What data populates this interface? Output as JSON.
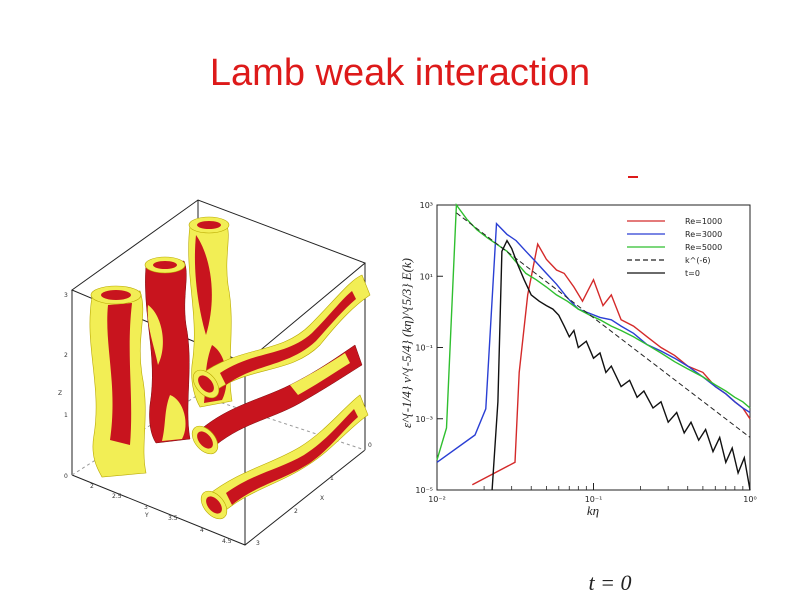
{
  "slide": {
    "title": "Lamb weak interaction",
    "caption": "t = 0"
  },
  "figure3d": {
    "axis_labels": {
      "x": "X",
      "y": "Y",
      "z": "Z"
    },
    "z_ticks": [
      "0",
      "1",
      "2",
      "3"
    ],
    "y_ticks": [
      "2",
      "2.5",
      "3",
      "3.5",
      "4",
      "4.5"
    ],
    "x_ticks": [
      "0",
      "1",
      "2",
      "3"
    ],
    "colors": {
      "inner": "#c8141e",
      "outer": "#f2ee55"
    }
  },
  "chart_data": {
    "type": "line",
    "xlabel": "kη",
    "ylabel": "ε^{-1/4} ν^{-5/4} (kη)^{5/3} E(k)",
    "xscale": "log",
    "yscale": "log",
    "xlim": [
      0.01,
      1
    ],
    "ylim": [
      1e-05,
      1000
    ],
    "x_ticks": [
      "10⁻²",
      "10⁻¹",
      "10⁰"
    ],
    "y_ticks": [
      "10⁻⁵",
      "10⁻³",
      "10⁻¹",
      "10¹",
      "10³"
    ],
    "legend_position": "top-right",
    "series": [
      {
        "name": "Re=1000",
        "color": "#d42a2a",
        "style": "solid",
        "x": [
          0.0168,
          0.0315,
          0.0335,
          0.038,
          0.044,
          0.05,
          0.058,
          0.065,
          0.075,
          0.085,
          0.1,
          0.115,
          0.13,
          0.15,
          0.18,
          0.22,
          0.27,
          0.33,
          0.4,
          0.5,
          0.6,
          0.7,
          0.8,
          0.9,
          1.0
        ],
        "y": [
          1.4e-05,
          6e-05,
          0.02,
          3,
          80,
          30,
          15,
          12,
          5,
          2,
          8,
          1.5,
          3,
          0.6,
          0.4,
          0.2,
          0.1,
          0.06,
          0.03,
          0.02,
          0.008,
          0.005,
          0.003,
          0.002,
          0.001
        ]
      },
      {
        "name": "Re=3000",
        "color": "#2a3fd4",
        "style": "solid",
        "x": [
          0.01,
          0.0175,
          0.0205,
          0.024,
          0.028,
          0.032,
          0.037,
          0.043,
          0.05,
          0.058,
          0.068,
          0.08,
          0.095,
          0.11,
          0.13,
          0.15,
          0.18,
          0.22,
          0.27,
          0.33,
          0.4,
          0.5,
          0.6,
          0.7,
          0.8,
          0.9,
          1.0
        ],
        "y": [
          6e-05,
          0.00035,
          0.0019,
          300,
          150,
          100,
          50,
          25,
          12,
          6,
          2.5,
          1.2,
          0.9,
          0.7,
          0.6,
          0.4,
          0.25,
          0.12,
          0.08,
          0.05,
          0.03,
          0.015,
          0.008,
          0.005,
          0.003,
          0.002,
          0.0015
        ]
      },
      {
        "name": "Re=5000",
        "color": "#2fbf2f",
        "style": "solid",
        "x": [
          0.01,
          0.0115,
          0.0133,
          0.0155,
          0.018,
          0.021,
          0.024,
          0.028,
          0.032,
          0.037,
          0.043,
          0.05,
          0.058,
          0.068,
          0.08,
          0.095,
          0.11,
          0.13,
          0.15,
          0.18,
          0.22,
          0.27,
          0.33,
          0.4,
          0.5,
          0.6,
          0.7,
          0.8,
          0.9,
          1.0
        ],
        "y": [
          7e-05,
          0.00055,
          1000,
          400,
          200,
          120,
          80,
          50,
          25,
          12,
          8,
          5,
          3,
          2,
          1.2,
          0.8,
          0.6,
          0.4,
          0.3,
          0.2,
          0.12,
          0.07,
          0.04,
          0.025,
          0.015,
          0.009,
          0.006,
          0.004,
          0.003,
          0.002
        ]
      },
      {
        "name": "k^(-6)",
        "color": "#222222",
        "style": "dashed",
        "x": [
          0.0133,
          1.0
        ],
        "y": [
          600,
          0.0003
        ]
      },
      {
        "name": "t=0",
        "color": "#111111",
        "style": "solid",
        "x": [
          0.0225,
          0.0245,
          0.026,
          0.028,
          0.03,
          0.033,
          0.036,
          0.04,
          0.045,
          0.05,
          0.055,
          0.06,
          0.065,
          0.07,
          0.075,
          0.08,
          0.09,
          0.1,
          0.11,
          0.12,
          0.13,
          0.15,
          0.17,
          0.19,
          0.21,
          0.24,
          0.27,
          0.3,
          0.34,
          0.38,
          0.42,
          0.47,
          0.52,
          0.58,
          0.64,
          0.7,
          0.77,
          0.84,
          0.92,
          1.0
        ],
        "y": [
          1e-05,
          0.003,
          50,
          100,
          60,
          20,
          8,
          3,
          2,
          1.5,
          1.2,
          0.8,
          0.4,
          0.2,
          0.3,
          0.1,
          0.15,
          0.05,
          0.07,
          0.02,
          0.03,
          0.008,
          0.012,
          0.004,
          0.006,
          0.002,
          0.003,
          0.0008,
          0.0015,
          0.0004,
          0.0008,
          0.00025,
          0.0005,
          0.00012,
          0.0003,
          6e-05,
          0.00015,
          3e-05,
          8e-05,
          1e-05
        ]
      }
    ]
  }
}
